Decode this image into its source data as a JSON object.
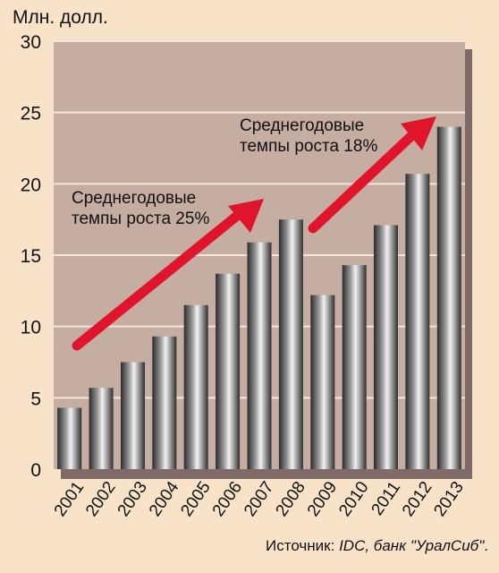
{
  "chart_data": {
    "type": "bar",
    "ylabel": "Млн. долл.",
    "xlabel": "",
    "title": "",
    "ylim": [
      0,
      30
    ],
    "yticks": [
      0,
      5,
      10,
      15,
      20,
      25,
      30
    ],
    "grid": true,
    "categories": [
      "2001",
      "2002",
      "2003",
      "2004",
      "2005",
      "2006",
      "2007",
      "2008",
      "2009",
      "2010",
      "2011",
      "2012",
      "2013"
    ],
    "values": [
      4.3,
      5.7,
      7.5,
      9.3,
      11.5,
      13.7,
      15.9,
      17.5,
      12.2,
      14.3,
      17.1,
      20.7,
      24.0
    ],
    "annotations": [
      {
        "line1": "Среднегодовые",
        "line2": "темпы роста 25%"
      },
      {
        "line1": "Среднегодовые",
        "line2": "темпы роста 18%"
      }
    ],
    "colors": {
      "plot_bg": "#c6ada2",
      "page_bg": "#f8e3c9",
      "arrow": "#e0142a",
      "shadow": "#7e6a66"
    }
  },
  "source": {
    "prefix": "Источник: ",
    "italic": "IDC, банк \"УралСиб\"",
    "suffix": "."
  }
}
